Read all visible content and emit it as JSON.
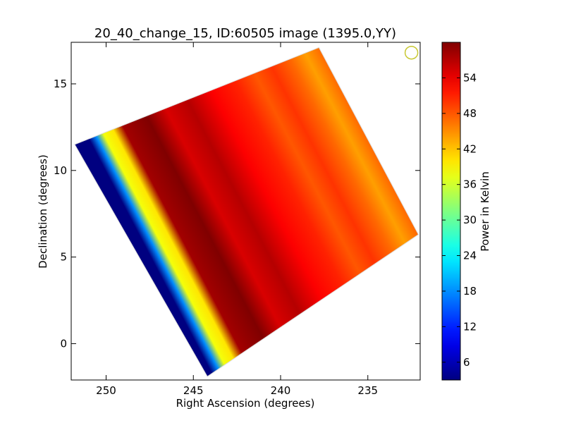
{
  "chart_data": {
    "type": "heatmap",
    "title": "20_40_change_15, ID:60505 image (1395.0,YY)",
    "xlabel": "Right Ascension (degrees)",
    "ylabel": "Declination (degrees)",
    "xlim": [
      252.0,
      232.0
    ],
    "ylim": [
      -2.1,
      17.4
    ],
    "x_ticks": [
      250,
      245,
      240,
      235
    ],
    "y_ticks": [
      0,
      5,
      10,
      15
    ],
    "colorbar": {
      "label": "Power in Kelvin",
      "colormap": "jet",
      "range": [
        3,
        60
      ],
      "ticks": [
        6,
        12,
        18,
        24,
        30,
        36,
        42,
        48,
        54
      ]
    },
    "footprint_corners_radec": [
      [
        251.8,
        11.5
      ],
      [
        237.8,
        17.1
      ],
      [
        232.1,
        6.3
      ],
      [
        244.2,
        -1.9
      ]
    ],
    "annotation": {
      "shape": "circle",
      "ra": 232.5,
      "dec": 16.8,
      "color": "#c8c832"
    },
    "stripes_across_width": [
      {
        "frac": 0.0,
        "value": 3
      },
      {
        "frac": 0.04,
        "value": 3
      },
      {
        "frac": 0.07,
        "value": 18
      },
      {
        "frac": 0.1,
        "value": 38
      },
      {
        "frac": 0.14,
        "value": 40
      },
      {
        "frac": 0.18,
        "value": 58
      },
      {
        "frac": 0.28,
        "value": 60
      },
      {
        "frac": 0.36,
        "value": 55
      },
      {
        "frac": 0.45,
        "value": 57
      },
      {
        "frac": 0.55,
        "value": 53
      },
      {
        "frac": 0.65,
        "value": 51
      },
      {
        "frac": 0.73,
        "value": 48
      },
      {
        "frac": 0.8,
        "value": 50
      },
      {
        "frac": 0.88,
        "value": 47
      },
      {
        "frac": 0.94,
        "value": 44
      },
      {
        "frac": 1.0,
        "value": 47
      }
    ]
  }
}
